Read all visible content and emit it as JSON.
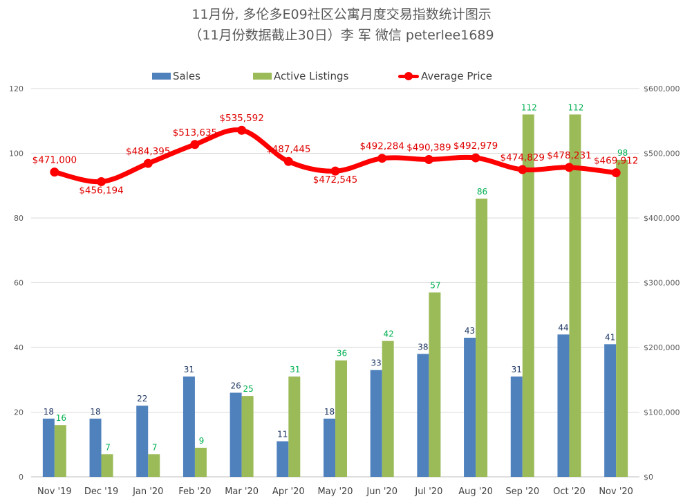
{
  "title": {
    "line1": "11月份, 多伦多E09社区公寓月度交易指数统计图示",
    "line2": "（11月份数据截止30日）李 军  微信  peterlee1689"
  },
  "legend": {
    "sales": "Sales",
    "listings": "Active Listings",
    "price": "Average Price"
  },
  "colors": {
    "sales": "#4f81bd",
    "listings": "#9bbb59",
    "price": "#ff0000",
    "sales_label": "#1f3864",
    "listings_label": "#00b050",
    "price_label": "#e00000",
    "axis_text": "#595959",
    "grid": "#d9d9d9"
  },
  "chart_data": {
    "type": "bar",
    "categories": [
      "Nov '19",
      "Dec '19",
      "Jan '20",
      "Feb '20",
      "Mar '20",
      "Apr '20",
      "May '20",
      "Jun '20",
      "Jul '20",
      "Aug '20",
      "Sep '20",
      "Oct '20",
      "Nov '20"
    ],
    "series": [
      {
        "name": "Sales",
        "type": "bar",
        "axis": "left",
        "values": [
          18,
          18,
          22,
          31,
          26,
          11,
          18,
          33,
          38,
          43,
          31,
          44,
          41
        ]
      },
      {
        "name": "Active Listings",
        "type": "bar",
        "axis": "left",
        "values": [
          16,
          7,
          7,
          9,
          25,
          31,
          36,
          42,
          57,
          86,
          112,
          112,
          98
        ]
      },
      {
        "name": "Average Price",
        "type": "line",
        "axis": "right",
        "values": [
          471000,
          456194,
          484395,
          513635,
          535592,
          487445,
          472545,
          492284,
          490389,
          492979,
          474829,
          478231,
          469912
        ]
      }
    ],
    "price_labels": [
      "$471,000",
      "$456,194",
      "$484,395",
      "$513,635",
      "$535,592",
      "$487,445",
      "$472,545",
      "$492,284",
      "$490,389",
      "$492,979",
      "$474,829",
      "$478,231",
      "$469,912"
    ],
    "ylim_left": [
      0,
      120
    ],
    "yticks_left": [
      "0",
      "20",
      "40",
      "60",
      "80",
      "100",
      "120"
    ],
    "ylim_right": [
      0,
      600000
    ],
    "yticks_right": [
      "$0",
      "$100,000",
      "$200,000",
      "$300,000",
      "$400,000",
      "$500,000",
      "$600,000"
    ],
    "grid": true,
    "legend_position": "top"
  }
}
